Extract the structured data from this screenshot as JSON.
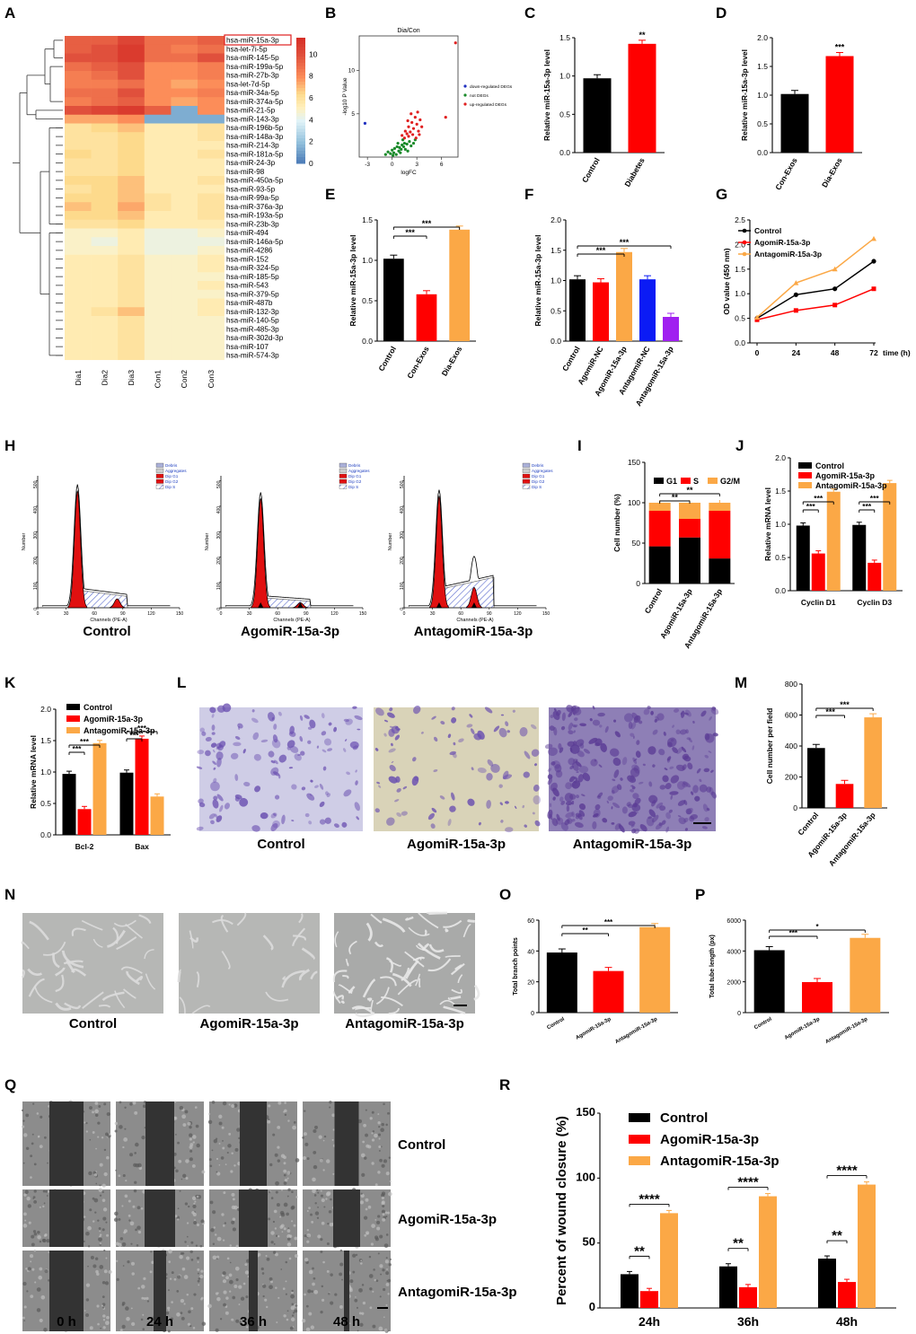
{
  "colors": {
    "control": "#000000",
    "agomir": "#ff0000",
    "antagomir": "#fba846",
    "nc_blue": "#0b1bf5",
    "purple": "#a020f0",
    "wound": "#333333"
  },
  "panels": {
    "A": "A",
    "B": "B",
    "C": "C",
    "D": "D",
    "E": "E",
    "F": "F",
    "G": "G",
    "H": "H",
    "I": "I",
    "J": "J",
    "K": "K",
    "L": "L",
    "M": "M",
    "N": "N",
    "O": "O",
    "P": "P",
    "Q": "Q",
    "R": "R"
  },
  "heatmap": {
    "type": "heatmap",
    "rows": [
      "hsa-miR-15a-3p",
      "hsa-let-7i-5p",
      "hsa-miR-145-5p",
      "hsa-miR-199a-5p",
      "hsa-miR-27b-3p",
      "hsa-let-7d-5p",
      "hsa-miR-34a-5p",
      "hsa-miR-374a-5p",
      "hsa-miR-21-5p",
      "hsa-miR-143-3p",
      "hsa-miR-196b-5p",
      "hsa-miR-148a-3p",
      "hsa-miR-214-3p",
      "hsa-miR-181a-5p",
      "hsa-miR-24-3p",
      "hsa-miR-98",
      "hsa-miR-450a-5p",
      "hsa-miR-93-5p",
      "hsa-miR-99a-5p",
      "hsa-miR-376a-3p",
      "hsa-miR-193a-5p",
      "hsa-miR-23b-3p",
      "hsa-miR-494",
      "hsa-miR-146a-5p",
      "hsa-miR-4286",
      "hsa-miR-152",
      "hsa-miR-324-5p",
      "hsa-miR-185-5p",
      "hsa-miR-543",
      "hsa-miR-379-5p",
      "hsa-miR-487b",
      "hsa-miR-132-3p",
      "hsa-miR-140-5p",
      "hsa-miR-485-3p",
      "hsa-miR-302d-3p",
      "hsa-miR-107",
      "hsa-miR-574-3p"
    ],
    "cols": [
      "Dia1",
      "Dia2",
      "Dia3",
      "Con1",
      "Con2",
      "Con3"
    ],
    "values": [
      [
        9.5,
        9.5,
        10.5,
        9,
        9,
        9.5
      ],
      [
        9.5,
        10,
        11,
        9,
        8.5,
        9
      ],
      [
        10,
        10,
        11,
        9,
        9,
        10
      ],
      [
        9,
        9.5,
        10,
        8,
        8,
        8.5
      ],
      [
        8.5,
        9,
        10,
        8,
        8,
        8.5
      ],
      [
        8.5,
        8.5,
        9,
        8,
        7.5,
        8
      ],
      [
        9,
        9,
        10,
        8,
        8,
        8.5
      ],
      [
        8.5,
        9,
        9.5,
        8,
        7.5,
        8
      ],
      [
        10,
        10.5,
        11,
        9.5,
        1.5,
        8
      ],
      [
        7.5,
        7.5,
        8,
        1.5,
        1.5,
        1.5
      ],
      [
        6,
        6.5,
        7,
        5.5,
        5.5,
        6
      ],
      [
        6,
        6,
        6.5,
        5.5,
        5.5,
        6
      ],
      [
        6,
        6,
        6.5,
        5.5,
        5.5,
        5.5
      ],
      [
        6.5,
        6,
        6.5,
        5.5,
        5.5,
        6
      ],
      [
        6,
        6,
        6.5,
        5.5,
        5.5,
        5.5
      ],
      [
        6,
        6,
        6.5,
        5.5,
        5.5,
        5.5
      ],
      [
        6.5,
        6.5,
        7,
        5.5,
        5.5,
        6
      ],
      [
        6,
        6.5,
        7,
        5.5,
        5.5,
        5.5
      ],
      [
        6.5,
        6.5,
        7,
        6,
        5.5,
        6
      ],
      [
        7,
        6.5,
        7.5,
        6,
        5.5,
        6
      ],
      [
        6.5,
        6.5,
        7,
        5.5,
        5.5,
        6
      ],
      [
        6,
        6,
        6.5,
        5.5,
        5.5,
        5.5
      ],
      [
        5,
        5,
        5.5,
        4.5,
        4.5,
        5
      ],
      [
        5,
        4.5,
        5.5,
        4.5,
        4.5,
        4.5
      ],
      [
        5,
        5,
        5.5,
        4.5,
        4.5,
        5
      ],
      [
        5.5,
        5.5,
        6,
        5,
        5,
        5.5
      ],
      [
        5.5,
        5.5,
        6,
        5,
        5,
        5.5
      ],
      [
        5.5,
        5.5,
        6,
        5,
        5,
        5
      ],
      [
        5.5,
        5.5,
        6,
        5,
        5,
        5.5
      ],
      [
        5.5,
        5.5,
        6,
        5,
        5,
        5
      ],
      [
        5.5,
        5.5,
        6,
        5,
        5,
        5.5
      ],
      [
        5.5,
        6,
        7,
        5,
        5,
        5.5
      ],
      [
        5.5,
        5.5,
        6,
        5,
        5,
        5
      ],
      [
        5.5,
        5.5,
        6,
        5,
        5,
        5
      ],
      [
        5.5,
        5.5,
        6,
        5,
        5,
        5
      ],
      [
        5.5,
        5.5,
        6,
        5,
        5,
        5
      ],
      [
        5.5,
        5.5,
        6,
        5,
        5,
        5
      ]
    ],
    "scale": [
      10,
      8,
      6,
      4,
      2,
      0
    ],
    "highlight": "hsa-miR-15a-3p"
  },
  "volcano": {
    "type": "scatter",
    "title": "Dia/Con",
    "xlabel": "logFC",
    "ylabel": "-log10 P Value",
    "xticks": [
      "-3",
      "0",
      "3",
      "6"
    ],
    "yticks": [
      "5",
      "10"
    ],
    "legend": [
      "down-regulated DEGs",
      "not DEGs",
      "up-regulated DEGs"
    ]
  },
  "panelC": {
    "type": "bar",
    "ylabel": "Relative miR-15a-3p level",
    "ylim": [
      0,
      1.5
    ],
    "yticks": [
      "0.0",
      "0.5",
      "1.0",
      "1.5"
    ],
    "categories": [
      "Control",
      "Diabetes"
    ],
    "values": [
      0.97,
      1.42
    ],
    "sig": "**"
  },
  "panelD": {
    "type": "bar",
    "ylabel": "Relative miR-15a-3p level",
    "ylim": [
      0,
      2
    ],
    "yticks": [
      "0.0",
      "0.5",
      "1.0",
      "1.5",
      "2.0"
    ],
    "categories": [
      "Con-Exos",
      "Dia-Exos"
    ],
    "values": [
      1.02,
      1.68
    ],
    "sig": "***"
  },
  "panelE": {
    "type": "bar",
    "ylabel": "Relative miR-15a-3p level",
    "ylim": [
      0,
      1.5
    ],
    "yticks": [
      "0.0",
      "0.5",
      "1.0",
      "1.5"
    ],
    "categories": [
      "Control",
      "Con-Exos",
      "Dia-Exos"
    ],
    "values": [
      1.02,
      0.58,
      1.38
    ],
    "sigs": [
      "***",
      "***"
    ]
  },
  "panelF": {
    "type": "bar",
    "ylabel": "Relative miR-15a-3p level",
    "ylim": [
      0,
      2
    ],
    "yticks": [
      "0.0",
      "0.5",
      "1.0",
      "1.5",
      "2.0"
    ],
    "categories": [
      "Control",
      "AgomiR-NC",
      "AgomiR-15a-3p",
      "AntagomiR-NC",
      "AntagomiR-15a-3p"
    ],
    "values": [
      1.02,
      0.97,
      1.47,
      1.02,
      0.4
    ],
    "sigs": [
      "***",
      "***"
    ]
  },
  "panelG": {
    "type": "line",
    "ylabel": "OD value (450 nm)",
    "xlabel": "time (h)",
    "x": [
      0,
      24,
      48,
      72
    ],
    "ylim": [
      0,
      2.5
    ],
    "yticks": [
      "0.0",
      "0.5",
      "1.0",
      "1.5",
      "2.0",
      "2.5"
    ],
    "xticks": [
      "0",
      "24",
      "48",
      "72"
    ],
    "series": [
      {
        "name": "Control",
        "values": [
          0.5,
          0.98,
          1.1,
          1.66
        ]
      },
      {
        "name": "AgomiR-15a-3p",
        "values": [
          0.47,
          0.66,
          0.77,
          1.1
        ]
      },
      {
        "name": "AntagomiR-15a-3p",
        "values": [
          0.52,
          1.22,
          1.5,
          2.12
        ]
      }
    ]
  },
  "panelH": {
    "type": "area",
    "xlabel": "Channels (PE-A)",
    "ylabel": "Number",
    "xticks": [
      "0",
      "30",
      "60",
      "90",
      "120",
      "150"
    ],
    "yticks": [
      "0",
      "100",
      "200",
      "300",
      "400",
      "500"
    ],
    "legend": [
      "Debris",
      "Aggregates",
      "Dip G1",
      "Dip G2",
      "Dip S"
    ],
    "labels": [
      "Control",
      "AgomiR-15a-3p",
      "AntagomiR-15a-3p"
    ]
  },
  "panelI": {
    "type": "bar",
    "ylabel": "Cell number (%)",
    "ylim": [
      0,
      150
    ],
    "yticks": [
      "0",
      "50",
      "100",
      "150"
    ],
    "categories": [
      "Control",
      "AgomiR-15a-3p",
      "AntagomiR-15a-3p"
    ],
    "series": [
      {
        "name": "G1",
        "values": [
          46,
          57,
          31
        ]
      },
      {
        "name": "S",
        "values": [
          44,
          23,
          59
        ]
      },
      {
        "name": "G2/M",
        "values": [
          10,
          20,
          10
        ]
      }
    ],
    "sigs": [
      "**",
      "**"
    ]
  },
  "panelJ": {
    "type": "bar",
    "ylabel": "Relative mRNA level",
    "ylim": [
      0,
      2
    ],
    "yticks": [
      "0.0",
      "0.5",
      "1.0",
      "1.5",
      "2.0"
    ],
    "categories": [
      "Cyclin D1",
      "Cyclin D3"
    ],
    "series": [
      {
        "name": "Control",
        "values": [
          0.98,
          0.99
        ]
      },
      {
        "name": "AgomiR-15a-3p",
        "values": [
          0.56,
          0.42
        ]
      },
      {
        "name": "AntagomiR-15a-3p",
        "values": [
          1.49,
          1.62
        ]
      }
    ],
    "sigs": [
      "***",
      "***"
    ]
  },
  "panelK": {
    "type": "bar",
    "ylabel": "Relative mRNA level",
    "ylim": [
      0,
      2
    ],
    "yticks": [
      "0.0",
      "0.5",
      "1.0",
      "1.5",
      "2.0"
    ],
    "categories": [
      "Bcl-2",
      "Bax"
    ],
    "series": [
      {
        "name": "Control",
        "values": [
          0.97,
          0.99
        ]
      },
      {
        "name": "AgomiR-15a-3p",
        "values": [
          0.41,
          1.53
        ]
      },
      {
        "name": "AntagomiR-15a-3p",
        "values": [
          1.46,
          0.61
        ]
      }
    ],
    "sigs": [
      "***",
      "***"
    ]
  },
  "panelL": {
    "labels": [
      "Control",
      "AgomiR-15a-3p",
      "AntagomiR-15a-3p"
    ]
  },
  "panelM": {
    "type": "bar",
    "ylabel": "Cell number per field",
    "ylim": [
      0,
      800
    ],
    "yticks": [
      "0",
      "200",
      "400",
      "600",
      "800"
    ],
    "categories": [
      "Control",
      "AgomiR-15a-3p",
      "AntagomiR-15a-3p"
    ],
    "values": [
      387,
      155,
      585
    ],
    "sigs": [
      "***",
      "***"
    ]
  },
  "panelN": {
    "labels": [
      "Control",
      "AgomiR-15a-3p",
      "AntagomiR-15a-3p"
    ]
  },
  "panelO": {
    "type": "bar",
    "ylabel": "Total branch points",
    "ylim": [
      0,
      60
    ],
    "yticks": [
      "0",
      "20",
      "40",
      "60"
    ],
    "categories": [
      "Control",
      "AgomiR-15a-3p",
      "AntagomiR-15a-3p"
    ],
    "values": [
      39,
      27,
      55.5
    ],
    "sigs": [
      "**",
      "***"
    ]
  },
  "panelP": {
    "type": "bar",
    "ylabel": "Total tube length (px)",
    "ylim": [
      0,
      6000
    ],
    "yticks": [
      "0",
      "2000",
      "4000",
      "6000"
    ],
    "categories": [
      "Control",
      "AgomiR-15a-3p",
      "AntagomiR-15a-3p"
    ],
    "values": [
      4050,
      1980,
      4850
    ],
    "sigs": [
      "***",
      "*"
    ]
  },
  "panelQ": {
    "rows": [
      "Control",
      "AgomiR-15a-3p",
      "AntagomiR-15a-3p"
    ],
    "cols": [
      "0 h",
      "24 h",
      "36 h",
      "48 h"
    ]
  },
  "panelR": {
    "type": "bar",
    "ylabel": "Percent of wound closure (%)",
    "ylim": [
      0,
      150
    ],
    "yticks": [
      "0",
      "50",
      "100",
      "150"
    ],
    "categories": [
      "24h",
      "36h",
      "48h"
    ],
    "series": [
      {
        "name": "Control",
        "values": [
          26,
          32,
          38
        ]
      },
      {
        "name": "AgomiR-15a-3p",
        "values": [
          13,
          16,
          20
        ]
      },
      {
        "name": "AntagomiR-15a-3p",
        "values": [
          73,
          86,
          95
        ]
      }
    ],
    "sigs": [
      "**",
      "****"
    ]
  }
}
